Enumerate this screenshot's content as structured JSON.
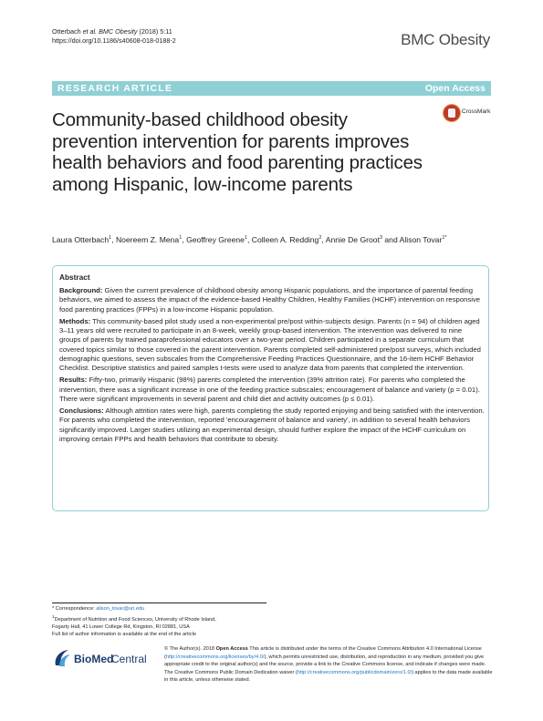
{
  "header": {
    "citation_authors": "Otterbach ",
    "citation_etal": "et al. BMC Obesity",
    "citation_rest": " (2018) 5:11",
    "doi": "https://doi.org/10.1186/s40608-018-0188-2",
    "journal_name": "BMC Obesity"
  },
  "banner": {
    "article_type": "RESEARCH ARTICLE",
    "access": "Open Access"
  },
  "crossmark_label": "CrossMark",
  "title": "Community-based childhood obesity prevention intervention for parents improves health behaviors and food parenting practices among Hispanic, low-income parents",
  "authors": [
    {
      "name": "Laura Otterbach",
      "sup": "1"
    },
    {
      "name": "Noereem Z. Mena",
      "sup": "1"
    },
    {
      "name": "Geoffrey Greene",
      "sup": "1"
    },
    {
      "name": "Colleen A. Redding",
      "sup": "2"
    },
    {
      "name": "Annie De Groot",
      "sup": "3"
    },
    {
      "name": "Alison Tovar",
      "sup": "1*"
    }
  ],
  "abstract": {
    "heading": "Abstract",
    "background_label": "Background:",
    "background_text": " Given the current prevalence of childhood obesity among Hispanic populations, and the importance of parental feeding behaviors, we aimed to assess the impact of the evidence-based Healthy Children, Healthy Families (HCHF) intervention on responsive food parenting practices (FPPs) in a low-income Hispanic population.",
    "methods_label": "Methods:",
    "methods_text": " This community-based pilot study used a non-experimental pre/post within-subjects design. Parents (n = 94) of children aged 3–11 years old were recruited to participate in an 8-week, weekly group-based intervention. The intervention was delivered to nine groups of parents by trained paraprofessional educators over a two-year period. Children participated in a separate curriculum that covered topics similar to those covered in the parent intervention. Parents completed self-administered pre/post surveys, which included demographic questions, seven subscales from the Comprehensive Feeding Practices Questionnaire, and the 16-item HCHF Behavior Checklist. Descriptive statistics and paired samples t-tests were used to analyze data from parents that completed the intervention.",
    "results_label": "Results:",
    "results_text": " Fifty-two, primarily Hispanic (98%) parents completed the intervention (39% attrition rate). For parents who completed the intervention, there was a significant increase in one of the feeding practice subscales; encouragement of balance and variety (p = 0.01). There were significant improvements in several parent and child diet and activity outcomes (p ≤ 0.01).",
    "conclusions_label": "Conclusions:",
    "conclusions_text": " Although attrition rates were high, parents completing the study reported enjoying and being satisfied with the intervention. For parents who completed the intervention, reported 'encouragement of balance and variety', in addition to several health behaviors significantly improved. Larger studies utilizing an experimental design, should further explore the impact of the HCHF curriculum on improving certain FPPs and health behaviors that contribute to obesity."
  },
  "footnotes": {
    "correspondence_label": "* Correspondence: ",
    "email": "alison_tovar@uri.edu",
    "affil_sup": "1",
    "affiliation_1": "Department of Nutrition and Food Sciences, University of Rhode Island,",
    "affiliation_2": "Fogarty Hall, 41 Lower College Rd, Kingston, RI 02881, USA",
    "more_info": "Full list of author information is available at the end of the article"
  },
  "publisher": {
    "logo_bold": "BioMed",
    "logo_regular": " Central"
  },
  "license": {
    "p1": "© The Author(s). 2018 ",
    "open_access": "Open Access",
    "p2": " This article is distributed under the terms of the Creative Commons Attribution 4.0 International License (",
    "link1": "http://creativecommons.org/licenses/by/4.0/",
    "p3": "), which permits unrestricted use, distribution, and reproduction in any medium, provided you give appropriate credit to the original author(s) and the source, provide a link to the Creative Commons license, and indicate if changes were made. The Creative Commons Public Domain Dedication waiver (",
    "link2": "http://creativecommons.org/publicdomain/zero/1.0/",
    "p4": ") applies to the data made available in this article, unless otherwise stated."
  },
  "colors": {
    "banner": "#8fd0d5",
    "link": "#1e73be",
    "publisher_blue": "#1a3f6e"
  }
}
